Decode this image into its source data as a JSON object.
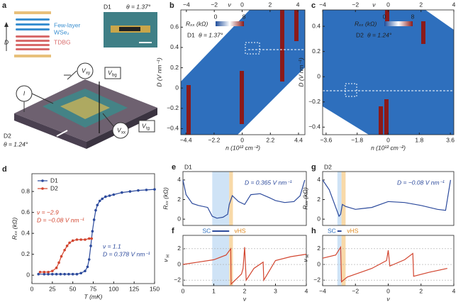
{
  "panel_a": {
    "label": "a",
    "device1": "D1",
    "theta1": "θ = 1.37°",
    "layer_top": "Few-layer",
    "layer_wse2": "WSe₂",
    "layer_tdbg": "TDBG",
    "field": "D",
    "current": "I",
    "v_xy": "V",
    "v_xy_sub": "xy",
    "v_bg": "V",
    "v_bg_sub": "bg",
    "v_tg": "V",
    "v_tg_sub": "tg",
    "v_xx": "V",
    "v_xx_sub": "xx",
    "device2": "D2",
    "theta2": "θ = 1.24°"
  },
  "chart_data": [
    {
      "type": "heatmap",
      "label": "b",
      "top_xlabel": "ν",
      "top_xlim": [
        -4.4,
        4.5
      ],
      "top_xticks": [
        {
          "value": -4,
          "label": "−4"
        },
        {
          "value": -2,
          "label": "−2"
        },
        0,
        2,
        4
      ],
      "xlabel": "n (10¹² cm⁻²)",
      "xlim": [
        -4.8,
        4.9
      ],
      "xticks": [
        {
          "value": -4.4,
          "label": "−4.4"
        },
        {
          "value": -2.2,
          "label": "−2.2"
        },
        0,
        2.2,
        4.4
      ],
      "ylabel": "D (V nm⁻¹)",
      "ylim": [
        -0.46,
        0.77
      ],
      "yticks": [
        {
          "value": -0.4,
          "label": "−0.4"
        },
        {
          "value": -0.2,
          "label": "−0.2"
        },
        0,
        0.2,
        0.4,
        0.6
      ],
      "colorbar_label": "Rₓₓ (kΩ)",
      "colorbar_ticks": [
        0,
        8
      ],
      "device": "D1",
      "theta": "θ = 1.37°"
    },
    {
      "type": "heatmap",
      "label": "c",
      "top_xlabel": "ν",
      "top_xlim": [
        -4,
        4
      ],
      "top_xticks": [
        {
          "value": -4,
          "label": "−4"
        },
        {
          "value": -2,
          "label": "−2"
        },
        0,
        2,
        4
      ],
      "xlabel": "n (10¹² cm⁻²)",
      "xlim": [
        -3.8,
        3.8
      ],
      "xticks": [
        {
          "value": -3.6,
          "label": "−3.6"
        },
        {
          "value": -1.8,
          "label": "−1.8"
        },
        0,
        1.8,
        3.6
      ],
      "ylabel": "D (V nm⁻¹)",
      "ylim": [
        -0.46,
        0.53
      ],
      "yticks": [
        {
          "value": -0.4,
          "label": "−0.4"
        },
        {
          "value": -0.2,
          "label": "−0.2"
        },
        0,
        0.2,
        0.4
      ],
      "colorbar_label": "Rₓₓ (kΩ)",
      "colorbar_ticks": [
        0,
        8
      ],
      "device": "D2",
      "theta": "θ = 1.24°"
    },
    {
      "type": "line",
      "label": "d",
      "xlabel": "T (mK)",
      "ylabel": "Rₓₓ (kΩ)",
      "xlim": [
        0,
        150
      ],
      "ylim": [
        -0.08,
        0.97
      ],
      "xticks": [
        0,
        25,
        50,
        75,
        100,
        125,
        150
      ],
      "yticks": [
        0,
        0.2,
        0.4,
        0.6,
        0.8
      ],
      "markers": true,
      "legend": "upper left",
      "series": [
        {
          "name": "D1",
          "color": "#2c4a9c",
          "x": [
            8,
            15,
            20,
            25,
            30,
            35,
            40,
            45,
            50,
            55,
            60,
            65,
            68,
            70,
            72,
            74,
            76,
            78,
            80,
            83,
            86,
            90,
            95,
            100,
            110,
            120,
            130,
            140,
            150
          ],
          "values": [
            0.01,
            0.01,
            0.01,
            0.01,
            0.01,
            0.01,
            0.01,
            0.01,
            0.01,
            0.01,
            0.02,
            0.04,
            0.08,
            0.15,
            0.28,
            0.42,
            0.53,
            0.62,
            0.67,
            0.71,
            0.73,
            0.75,
            0.76,
            0.77,
            0.79,
            0.8,
            0.81,
            0.815,
            0.82
          ]
        },
        {
          "name": "D2",
          "color": "#d2452f",
          "x": [
            10,
            15,
            20,
            25,
            30,
            33,
            36,
            40,
            43,
            46,
            50,
            55,
            60,
            65,
            70,
            73
          ],
          "values": [
            0.03,
            0.03,
            0.03,
            0.04,
            0.07,
            0.12,
            0.18,
            0.24,
            0.28,
            0.31,
            0.33,
            0.34,
            0.34,
            0.34,
            0.35,
            0.35
          ]
        }
      ],
      "annotations": [
        {
          "text": "ν = −2.9",
          "color": "#d2452f"
        },
        {
          "text": "D = −0.08 V nm⁻¹",
          "color": "#d2452f"
        },
        {
          "text": "ν = 1.1",
          "color": "#2c4a9c"
        },
        {
          "text": "D = 0.378 V nm⁻¹",
          "color": "#2c4a9c"
        }
      ]
    },
    {
      "type": "line",
      "label": "e",
      "device": "D1",
      "ylabel": "Rₓₓ (kΩ)",
      "xlim": [
        0,
        4
      ],
      "ylim": [
        -0.64,
        4.86
      ],
      "yticks": [
        0,
        2,
        4
      ],
      "sc_band": [
        0.95,
        1.5
      ],
      "vhs_band": [
        1.5,
        1.62
      ],
      "sc_label": "SC",
      "vhs_label": "vHS",
      "annotations": [
        {
          "text": "D = 0.365 V nm⁻¹",
          "color": "#2c4a9c"
        }
      ],
      "series": [
        {
          "color": "#2c4a9c",
          "x": [
            0,
            0.1,
            0.3,
            0.5,
            0.8,
            0.95,
            1.1,
            1.3,
            1.45,
            1.5,
            1.6,
            1.8,
            2.0,
            2.2,
            2.5,
            2.8,
            3.0,
            3.3,
            3.6,
            3.8,
            3.95
          ],
          "values": [
            4,
            2.5,
            1.6,
            1.4,
            1.2,
            0.3,
            0.1,
            0.2,
            0.5,
            1.5,
            2.4,
            1.8,
            1.5,
            2.5,
            2.6,
            2.2,
            1.9,
            1.7,
            1.8,
            2.4,
            4
          ]
        }
      ]
    },
    {
      "type": "line",
      "label": "f",
      "ylabel": "ν",
      "ylabel_sub": "H",
      "xlabel": "ν",
      "xlim": [
        0,
        4
      ],
      "ylim": [
        -2.7,
        3.7
      ],
      "xticks": [
        0,
        1,
        2,
        3,
        4
      ],
      "yticks": [
        {
          "value": -2,
          "label": "−2"
        },
        0,
        2
      ],
      "grid": true,
      "sc_band": [
        0.95,
        1.5
      ],
      "vhs_band": [
        1.5,
        1.62
      ],
      "series": [
        {
          "color": "#d2452f",
          "x": [
            0,
            0.5,
            1,
            1.4,
            1.55,
            1.56,
            1.9,
            1.95,
            2.0,
            2.05,
            2.3,
            2.6,
            2.62,
            3,
            3.5,
            4
          ],
          "values": [
            0,
            0.3,
            0.6,
            1.2,
            2.0,
            -2.5,
            -1.2,
            -0.5,
            2.2,
            -2.0,
            -0.5,
            0.3,
            -2.0,
            0.5,
            1.0,
            1.3
          ]
        }
      ]
    },
    {
      "type": "line",
      "label": "g",
      "device": "D2",
      "ylabel": "Rₓₓ (kΩ)",
      "xlim": [
        -4,
        4
      ],
      "ylim": [
        -0.64,
        4.86
      ],
      "yticks": [
        0,
        2,
        4
      ],
      "sc_band": [
        -3.1,
        -2.85
      ],
      "vhs_band": [
        -2.85,
        -2.6
      ],
      "sc_label": "SC",
      "vhs_label": "vHS",
      "annotations": [
        {
          "text": "D = −0.08 V nm⁻¹",
          "color": "#2c4a9c"
        }
      ],
      "series": [
        {
          "color": "#2c4a9c",
          "x": [
            -4,
            -3.6,
            -3.2,
            -3.0,
            -2.9,
            -2.8,
            -2.6,
            -2,
            -1,
            0,
            1,
            2,
            3,
            3.5,
            3.8
          ],
          "values": [
            4,
            3,
            1.2,
            0.3,
            0.5,
            1.5,
            1.3,
            1.0,
            1.2,
            1.8,
            1.7,
            1.4,
            1.0,
            0.9,
            4
          ]
        }
      ]
    },
    {
      "type": "line",
      "label": "h",
      "ylabel": "ν",
      "ylabel_sub": "H",
      "xlabel": "ν",
      "xlim": [
        -4,
        4
      ],
      "ylim": [
        -2.7,
        3.7
      ],
      "xticks": [
        {
          "value": -4,
          "label": "−4"
        },
        {
          "value": -2,
          "label": "−2"
        },
        0,
        2,
        4
      ],
      "yticks": [
        {
          "value": -2,
          "label": "−2"
        },
        0,
        2
      ],
      "grid": true,
      "sc_band": [
        -3.1,
        -2.85
      ],
      "vhs_band": [
        -2.85,
        -2.6
      ],
      "series": [
        {
          "color": "#d2452f",
          "x": [
            -4,
            -3.2,
            -2.9,
            -2.85,
            -2.5,
            -1,
            -0.1,
            0,
            0.1,
            1,
            1.5,
            1.55,
            2.5,
            3.6
          ],
          "values": [
            0.8,
            1.2,
            2.2,
            -2.2,
            -1.6,
            -0.5,
            0.5,
            1.8,
            -0.2,
            0.6,
            1.4,
            -1.5,
            -1.0,
            -0.5
          ]
        }
      ]
    }
  ]
}
